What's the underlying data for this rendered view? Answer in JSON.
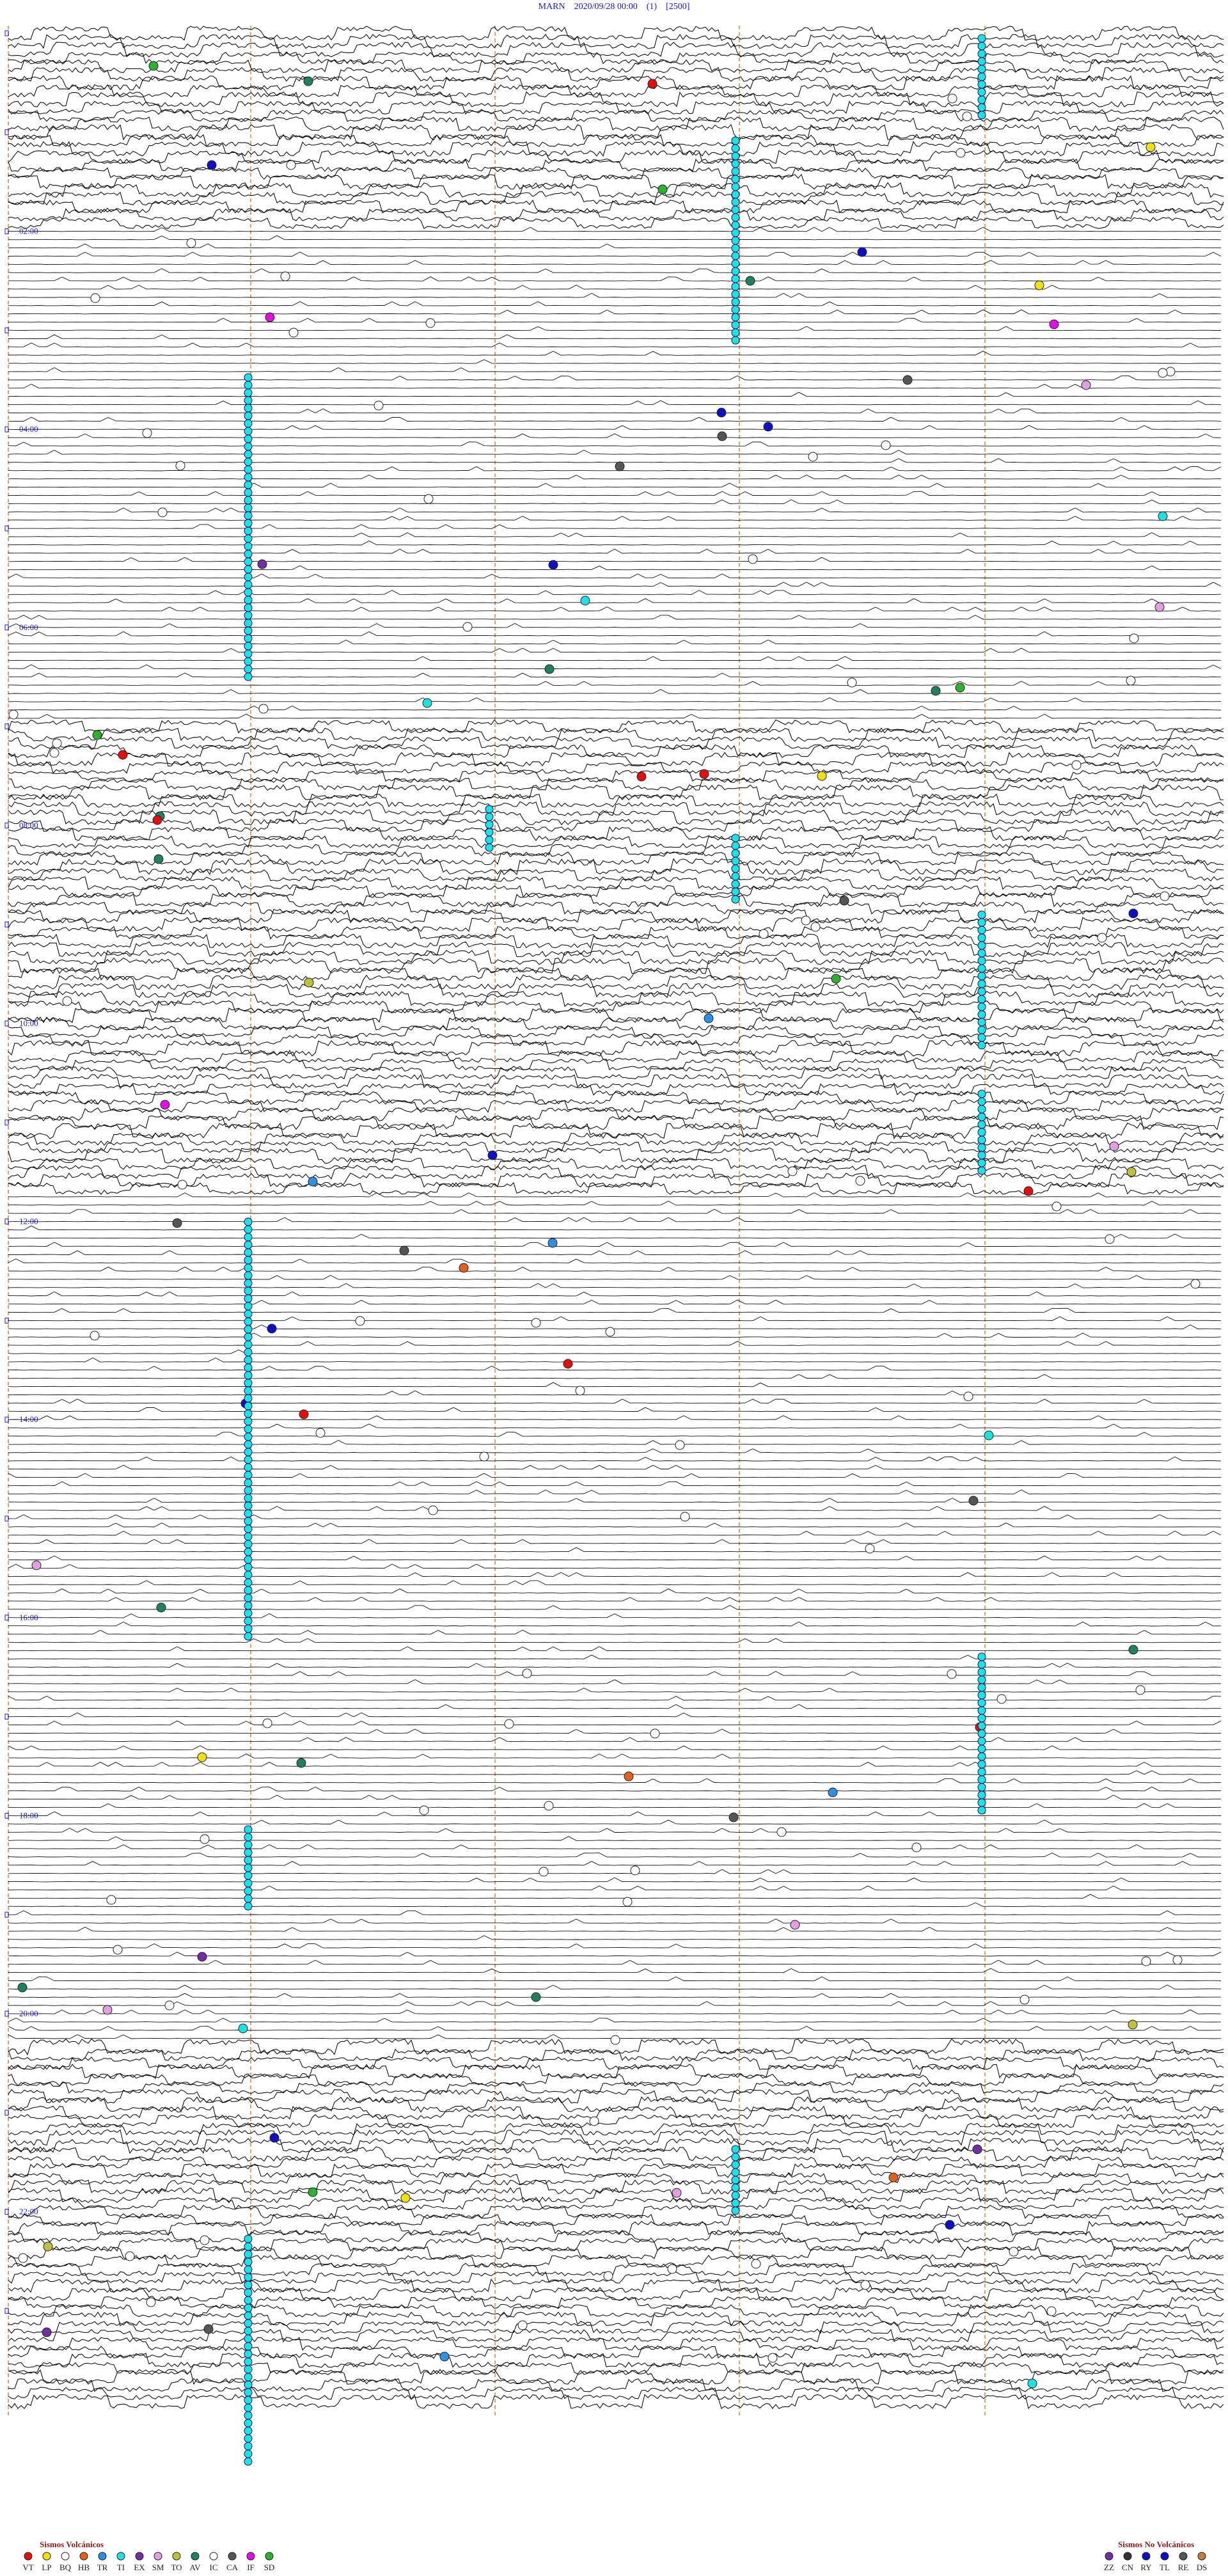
{
  "header": {
    "title": "MARN    2020/09/28 00:00    (1)    [2500]"
  },
  "time_labels": [
    "02:00",
    "04:00",
    "06:00",
    "08:00",
    "10:00",
    "12:00",
    "14:00",
    "16:00",
    "18:00",
    "20:00",
    "22:00"
  ],
  "legend": {
    "volcanic": {
      "title": "Sismos Volcánicos",
      "codes": [
        "VT",
        "LP",
        "BQ",
        "HB",
        "TR",
        "TI",
        "EX",
        "SM",
        "TO",
        "AV",
        "IC",
        "CA",
        "IF",
        "SD"
      ]
    },
    "non_volcanic": {
      "title": "Sismos No Volcánicos",
      "codes": [
        "ZZ",
        "CN",
        "RY",
        "TL",
        "RE",
        "DS"
      ]
    }
  }
}
